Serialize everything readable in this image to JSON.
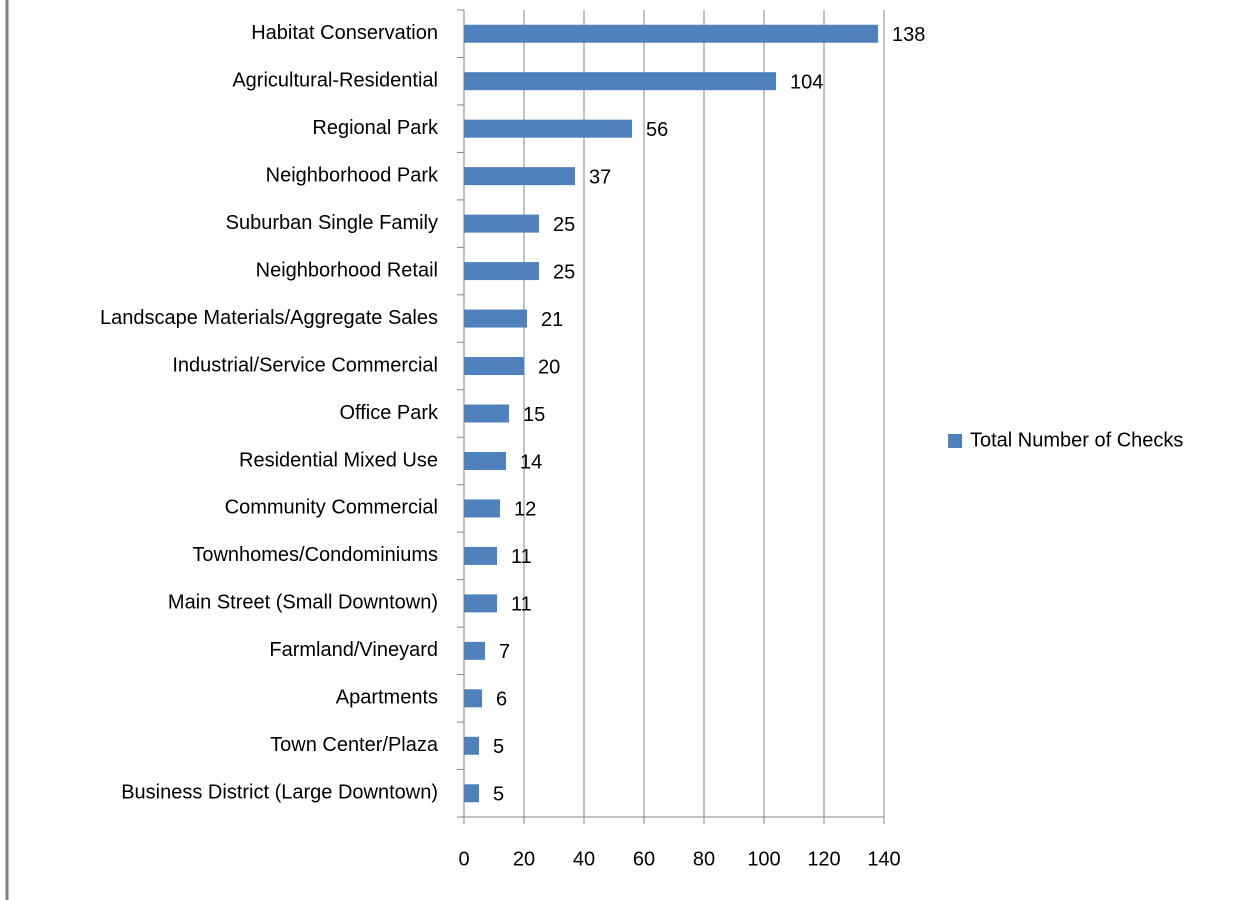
{
  "chart_data": {
    "type": "barh",
    "categories": [
      "Habitat Conservation",
      "Agricultural-Residential",
      "Regional Park",
      "Neighborhood Park",
      "Suburban Single Family",
      "Neighborhood Retail",
      "Landscape Materials/Aggregate Sales",
      "Industrial/Service Commercial",
      "Office Park",
      "Residential Mixed Use",
      "Community Commercial",
      "Townhomes/Condominiums",
      "Main Street (Small Downtown)",
      "Farmland/Vineyard",
      "Apartments",
      "Town Center/Plaza",
      "Business District (Large Downtown)"
    ],
    "series": [
      {
        "name": "Total Number of Checks",
        "color": "#4f81bd",
        "values": [
          138,
          104,
          56,
          37,
          25,
          25,
          21,
          20,
          15,
          14,
          12,
          11,
          11,
          7,
          6,
          5,
          5
        ]
      }
    ],
    "xlim": [
      0,
      140
    ],
    "xticks": [
      0,
      20,
      40,
      60,
      80,
      100,
      120,
      140
    ],
    "grid": true,
    "legend": "right"
  }
}
